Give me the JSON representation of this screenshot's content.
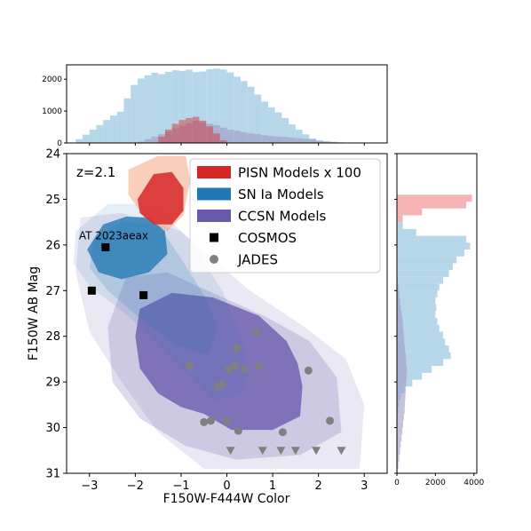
{
  "chart_data": {
    "type": "scatter",
    "annotation": "z=2.1",
    "xlabel": "F150W-F444W Color",
    "ylabel": "F150W AB Mag",
    "xlim": [
      -3.5,
      3.5
    ],
    "ylim": [
      31,
      24
    ],
    "x_ticks": [
      -3,
      -2,
      -1,
      0,
      1,
      2,
      3
    ],
    "x_tick_labels": [
      "−3",
      "−2",
      "−1",
      "0",
      "1",
      "2",
      "3"
    ],
    "y_ticks": [
      24,
      25,
      26,
      27,
      28,
      29,
      30,
      31
    ],
    "y_tick_labels": [
      "24",
      "25",
      "26",
      "27",
      "28",
      "29",
      "30",
      "31"
    ],
    "legend_placement": "top-right",
    "legend": [
      {
        "label": "PISN Models x 100",
        "kind": "patch",
        "color": "#d62728"
      },
      {
        "label": "SN Ia Models",
        "kind": "patch",
        "color": "#1f77b4"
      },
      {
        "label": "CCSN Models",
        "kind": "patch",
        "color": "#6a5aad"
      },
      {
        "label": "COSMOS",
        "kind": "square",
        "color": "#000000"
      },
      {
        "label": "JADES",
        "kind": "circle",
        "color": "#808080"
      }
    ],
    "series": [
      {
        "name": "COSMOS",
        "marker": "square",
        "color": "#000000",
        "points": [
          {
            "x": -2.65,
            "y": 26.05,
            "label": "AT 2023aeax"
          },
          {
            "x": -2.95,
            "y": 27.0
          },
          {
            "x": -1.82,
            "y": 27.1
          }
        ]
      },
      {
        "name": "JADES",
        "marker": "circle",
        "color": "#808080",
        "points": [
          {
            "x": -0.82,
            "y": 28.65
          },
          {
            "x": 0.65,
            "y": 27.92
          },
          {
            "x": 0.22,
            "y": 28.25
          },
          {
            "x": 0.05,
            "y": 28.72
          },
          {
            "x": 0.18,
            "y": 28.65
          },
          {
            "x": 0.38,
            "y": 28.72
          },
          {
            "x": 0.7,
            "y": 28.65
          },
          {
            "x": 1.78,
            "y": 28.75
          },
          {
            "x": -0.2,
            "y": 29.1
          },
          {
            "x": -0.1,
            "y": 29.05
          },
          {
            "x": 2.25,
            "y": 29.85
          },
          {
            "x": 1.22,
            "y": 30.1
          },
          {
            "x": -0.5,
            "y": 29.88
          },
          {
            "x": -0.35,
            "y": 29.85
          },
          {
            "x": 0.0,
            "y": 29.85
          },
          {
            "x": 0.25,
            "y": 30.07
          }
        ]
      },
      {
        "name": "",
        "marker": "triangle-down",
        "color": "#808080",
        "points": [
          {
            "x": 0.08,
            "y": 30.5
          },
          {
            "x": 0.78,
            "y": 30.5
          },
          {
            "x": 1.18,
            "y": 30.5
          },
          {
            "x": 1.5,
            "y": 30.5
          },
          {
            "x": 1.95,
            "y": 30.5
          },
          {
            "x": 2.5,
            "y": 30.5
          }
        ]
      }
    ],
    "density_regions": [
      {
        "model": "CCSN Models",
        "color": "#6a5aad",
        "level": "outer",
        "opacity": 0.14,
        "outline": [
          [
            -3.2,
            25.4
          ],
          [
            -2.3,
            25.3
          ],
          [
            -1.0,
            25.7
          ],
          [
            0.5,
            27.0
          ],
          [
            1.7,
            27.8
          ],
          [
            2.6,
            28.5
          ],
          [
            3.0,
            29.5
          ],
          [
            2.9,
            30.9
          ],
          [
            -0.5,
            30.9
          ],
          [
            -1.5,
            30.1
          ],
          [
            -2.3,
            29.0
          ],
          [
            -3.0,
            27.9
          ],
          [
            -3.3,
            26.6
          ]
        ]
      },
      {
        "model": "CCSN Models",
        "color": "#6a5aad",
        "level": "middle",
        "opacity": 0.22,
        "outline": [
          [
            -2.2,
            26.7
          ],
          [
            -1.3,
            26.6
          ],
          [
            -0.2,
            27.1
          ],
          [
            0.9,
            27.6
          ],
          [
            1.8,
            28.1
          ],
          [
            2.4,
            28.9
          ],
          [
            2.5,
            30.1
          ],
          [
            1.6,
            30.6
          ],
          [
            0.2,
            30.7
          ],
          [
            -0.9,
            30.4
          ],
          [
            -1.9,
            29.8
          ],
          [
            -2.5,
            29.0
          ],
          [
            -2.6,
            27.8
          ]
        ]
      },
      {
        "model": "CCSN Models",
        "color": "#6a5aad",
        "level": "core",
        "opacity": 0.78,
        "outline": [
          [
            -1.9,
            27.4
          ],
          [
            -1.2,
            27.05
          ],
          [
            -0.3,
            27.15
          ],
          [
            0.7,
            27.55
          ],
          [
            1.3,
            28.1
          ],
          [
            1.55,
            28.6
          ],
          [
            1.65,
            29.1
          ],
          [
            1.6,
            29.75
          ],
          [
            1.0,
            30.05
          ],
          [
            0.1,
            30.05
          ],
          [
            -0.5,
            29.7
          ],
          [
            -1.0,
            29.55
          ],
          [
            -1.5,
            29.25
          ],
          [
            -1.9,
            28.7
          ],
          [
            -2.0,
            28.0
          ]
        ]
      },
      {
        "model": "SN Ia Models",
        "color": "#1f77b4",
        "level": "outer",
        "opacity": 0.12,
        "outline": [
          [
            -3.3,
            25.7
          ],
          [
            -2.6,
            25.1
          ],
          [
            -1.6,
            25.1
          ],
          [
            -0.8,
            25.9
          ],
          [
            -0.1,
            27.0
          ],
          [
            0.3,
            28.0
          ],
          [
            0.5,
            28.8
          ],
          [
            0.3,
            29.3
          ],
          [
            -0.3,
            29.4
          ],
          [
            -1.1,
            28.6
          ],
          [
            -2.1,
            27.6
          ],
          [
            -3.0,
            26.9
          ],
          [
            -3.35,
            26.4
          ]
        ]
      },
      {
        "model": "SN Ia Models",
        "color": "#1f77b4",
        "level": "middle",
        "opacity": 0.18,
        "outline": [
          [
            -2.9,
            25.9
          ],
          [
            -2.3,
            25.5
          ],
          [
            -1.5,
            25.55
          ],
          [
            -1.0,
            26.3
          ],
          [
            -0.5,
            27.1
          ],
          [
            -0.2,
            27.8
          ],
          [
            -0.4,
            28.4
          ],
          [
            -1.1,
            28.2
          ],
          [
            -1.9,
            27.6
          ],
          [
            -2.6,
            27.0
          ],
          [
            -3.0,
            26.5
          ]
        ]
      },
      {
        "model": "SN Ia Models",
        "color": "#1f77b4",
        "level": "core",
        "opacity": 0.78,
        "outline": [
          [
            -3.05,
            26.1
          ],
          [
            -2.7,
            25.55
          ],
          [
            -2.2,
            25.38
          ],
          [
            -1.7,
            25.4
          ],
          [
            -1.35,
            25.7
          ],
          [
            -1.3,
            26.2
          ],
          [
            -1.7,
            26.6
          ],
          [
            -2.3,
            26.75
          ],
          [
            -2.8,
            26.6
          ]
        ]
      },
      {
        "model": "PISN Models x 100",
        "color": "#f4a582",
        "level": "outer",
        "opacity": 0.55,
        "outline": [
          [
            -2.15,
            24.35
          ],
          [
            -1.5,
            24.05
          ],
          [
            -0.9,
            24.05
          ],
          [
            -0.8,
            24.6
          ],
          [
            -0.95,
            25.35
          ],
          [
            -1.3,
            25.7
          ],
          [
            -1.8,
            25.4
          ],
          [
            -2.15,
            24.9
          ]
        ]
      },
      {
        "model": "PISN Models x 100",
        "color": "#d62728",
        "level": "core",
        "opacity": 0.85,
        "outline": [
          [
            -1.95,
            25.0
          ],
          [
            -1.6,
            24.45
          ],
          [
            -1.2,
            24.4
          ],
          [
            -0.95,
            24.75
          ],
          [
            -0.95,
            25.25
          ],
          [
            -1.2,
            25.55
          ],
          [
            -1.6,
            25.55
          ],
          [
            -1.9,
            25.3
          ]
        ]
      }
    ],
    "top_histogram": {
      "y_ticks": [
        0,
        1000,
        2000
      ],
      "y_tick_labels": [
        "0",
        "1000",
        "2000"
      ],
      "bin_edges_start": -3.6,
      "bin_width": 0.15,
      "series": [
        {
          "model": "SN Ia Models",
          "color": "#9ecae1",
          "opacity": 0.75,
          "counts": [
            0,
            0,
            120,
            260,
            420,
            560,
            720,
            860,
            980,
            1400,
            1820,
            2020,
            2120,
            2200,
            2160,
            2230,
            2280,
            2260,
            2300,
            2220,
            2240,
            2310,
            2330,
            2300,
            2210,
            2080,
            1940,
            1760,
            1520,
            1300,
            1120,
            960,
            780,
            580,
            420,
            270,
            140,
            60,
            20,
            0,
            0,
            0,
            0,
            0,
            0,
            0,
            0
          ]
        },
        {
          "model": "CCSN Models",
          "color": "#9e9ac8",
          "opacity": 0.6,
          "counts": [
            0,
            0,
            0,
            0,
            0,
            0,
            0,
            0,
            0,
            0,
            0,
            40,
            120,
            200,
            280,
            360,
            460,
            540,
            620,
            700,
            640,
            600,
            560,
            480,
            420,
            380,
            340,
            300,
            280,
            240,
            220,
            200,
            190,
            170,
            150,
            130,
            110,
            80,
            60,
            40,
            20,
            0,
            0,
            0,
            0,
            0,
            0
          ]
        },
        {
          "model": "PISN Models x 100",
          "color": "#d62728",
          "opacity": 0.45,
          "counts": [
            0,
            0,
            0,
            0,
            0,
            0,
            0,
            0,
            0,
            0,
            0,
            0,
            0,
            0,
            200,
            420,
            600,
            720,
            780,
            820,
            700,
            520,
            300,
            80,
            0,
            0,
            0,
            0,
            0,
            0,
            0,
            0,
            0,
            0,
            0,
            0,
            0,
            0,
            0,
            0,
            0,
            0,
            0,
            0,
            0,
            0,
            0
          ]
        }
      ]
    },
    "right_histogram": {
      "x_ticks": [
        0,
        2000,
        4000
      ],
      "x_tick_labels": [
        "0",
        "2000",
        "4000"
      ],
      "bin_edges_start": 24.0,
      "bin_width": 0.15,
      "series": [
        {
          "model": "SN Ia Models",
          "color": "#9ecae1",
          "opacity": 0.75,
          "counts": [
            0,
            0,
            0,
            0,
            0,
            0,
            0,
            0,
            0,
            0,
            300,
            1000,
            3600,
            3800,
            3500,
            3100,
            2900,
            2700,
            2400,
            2200,
            2100,
            2000,
            2050,
            2000,
            2100,
            2200,
            2400,
            2500,
            2700,
            2800,
            2400,
            1800,
            1300,
            800,
            400,
            200,
            100,
            60,
            30,
            10,
            0,
            0,
            0,
            0,
            0,
            0,
            0
          ]
        },
        {
          "model": "CCSN Models",
          "color": "#9e9ac8",
          "opacity": 0.6,
          "counts": [
            0,
            0,
            0,
            0,
            0,
            0,
            0,
            0,
            0,
            0,
            0,
            0,
            0,
            0,
            0,
            0,
            0,
            0,
            40,
            80,
            120,
            160,
            200,
            250,
            300,
            330,
            360,
            380,
            420,
            460,
            480,
            520,
            500,
            480,
            460,
            440,
            420,
            400,
            360,
            320,
            280,
            240,
            200,
            160,
            120,
            80,
            40
          ]
        },
        {
          "model": "PISN Models x 100",
          "color": "#f08080",
          "opacity": 0.6,
          "counts": [
            0,
            0,
            0,
            0,
            0,
            0,
            3900,
            3600,
            1300,
            300,
            0,
            0,
            0,
            0,
            0,
            0,
            0,
            0,
            0,
            0,
            0,
            0,
            0,
            0,
            0,
            0,
            0,
            0,
            0,
            0,
            0,
            0,
            0,
            0,
            0,
            0,
            0,
            0,
            0,
            0,
            0,
            0,
            0,
            0,
            0,
            0,
            0
          ]
        }
      ]
    }
  }
}
